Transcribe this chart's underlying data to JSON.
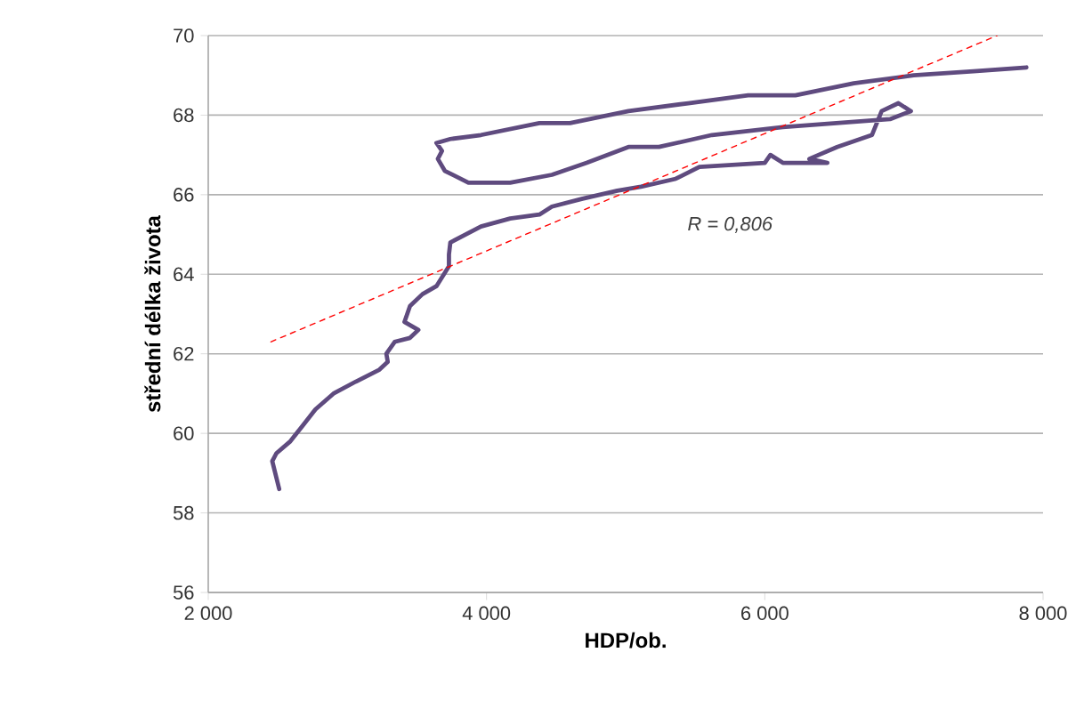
{
  "chart_data": {
    "type": "line",
    "xlabel": "HDP/ob.",
    "ylabel": "střední délka života",
    "xlim": [
      2000,
      8000
    ],
    "ylim": [
      56,
      70
    ],
    "xticks": [
      {
        "value": 2000,
        "label": "2 000"
      },
      {
        "value": 4000,
        "label": "4 000"
      },
      {
        "value": 6000,
        "label": "6 000"
      },
      {
        "value": 8000,
        "label": "8 000"
      }
    ],
    "yticks": [
      56,
      58,
      60,
      62,
      64,
      66,
      68,
      70
    ],
    "grid": "y",
    "series": [
      {
        "color": "#5f4b7f",
        "line_style": "solid",
        "x": [
          2510,
          2460,
          2490,
          2590,
          2680,
          2770,
          2900,
          3060,
          3230,
          3290,
          3280,
          3340,
          3450,
          3510,
          3410,
          3450,
          3540,
          3640,
          3730,
          3730,
          3740,
          3960,
          4170,
          4380,
          4470,
          4690,
          4940,
          5110,
          5360,
          5530,
          6000,
          6040,
          6130,
          6450,
          6320,
          6520,
          6770,
          6840,
          6960,
          7050,
          6900,
          6130,
          5620,
          5240,
          5020,
          4720,
          4470,
          4170,
          3870,
          3700,
          3650,
          3680,
          3640,
          3740,
          3960,
          4380,
          4600,
          5020,
          5450,
          5880,
          6220,
          6640,
          7070,
          7500,
          7880
        ],
        "values": [
          58.6,
          59.3,
          59.5,
          59.8,
          60.2,
          60.6,
          61.0,
          61.3,
          61.6,
          61.8,
          62.0,
          62.3,
          62.4,
          62.6,
          62.8,
          63.2,
          63.5,
          63.7,
          64.2,
          64.5,
          64.8,
          65.2,
          65.4,
          65.5,
          65.7,
          65.9,
          66.1,
          66.2,
          66.4,
          66.7,
          66.8,
          67.0,
          66.8,
          66.8,
          66.9,
          67.2,
          67.5,
          68.1,
          68.3,
          68.1,
          67.9,
          67.7,
          67.5,
          67.2,
          67.2,
          66.8,
          66.5,
          66.3,
          66.3,
          66.6,
          66.9,
          67.1,
          67.3,
          67.4,
          67.5,
          67.8,
          67.8,
          68.1,
          68.3,
          68.5,
          68.5,
          68.8,
          69.0,
          69.1,
          69.2
        ]
      },
      {
        "type": "line",
        "color": "#ff0000",
        "line_style": "dashed",
        "x": [
          2450,
          7670
        ],
        "values": [
          62.3,
          70.0
        ]
      }
    ],
    "annotations": [
      "*R = 0,806*"
    ]
  }
}
